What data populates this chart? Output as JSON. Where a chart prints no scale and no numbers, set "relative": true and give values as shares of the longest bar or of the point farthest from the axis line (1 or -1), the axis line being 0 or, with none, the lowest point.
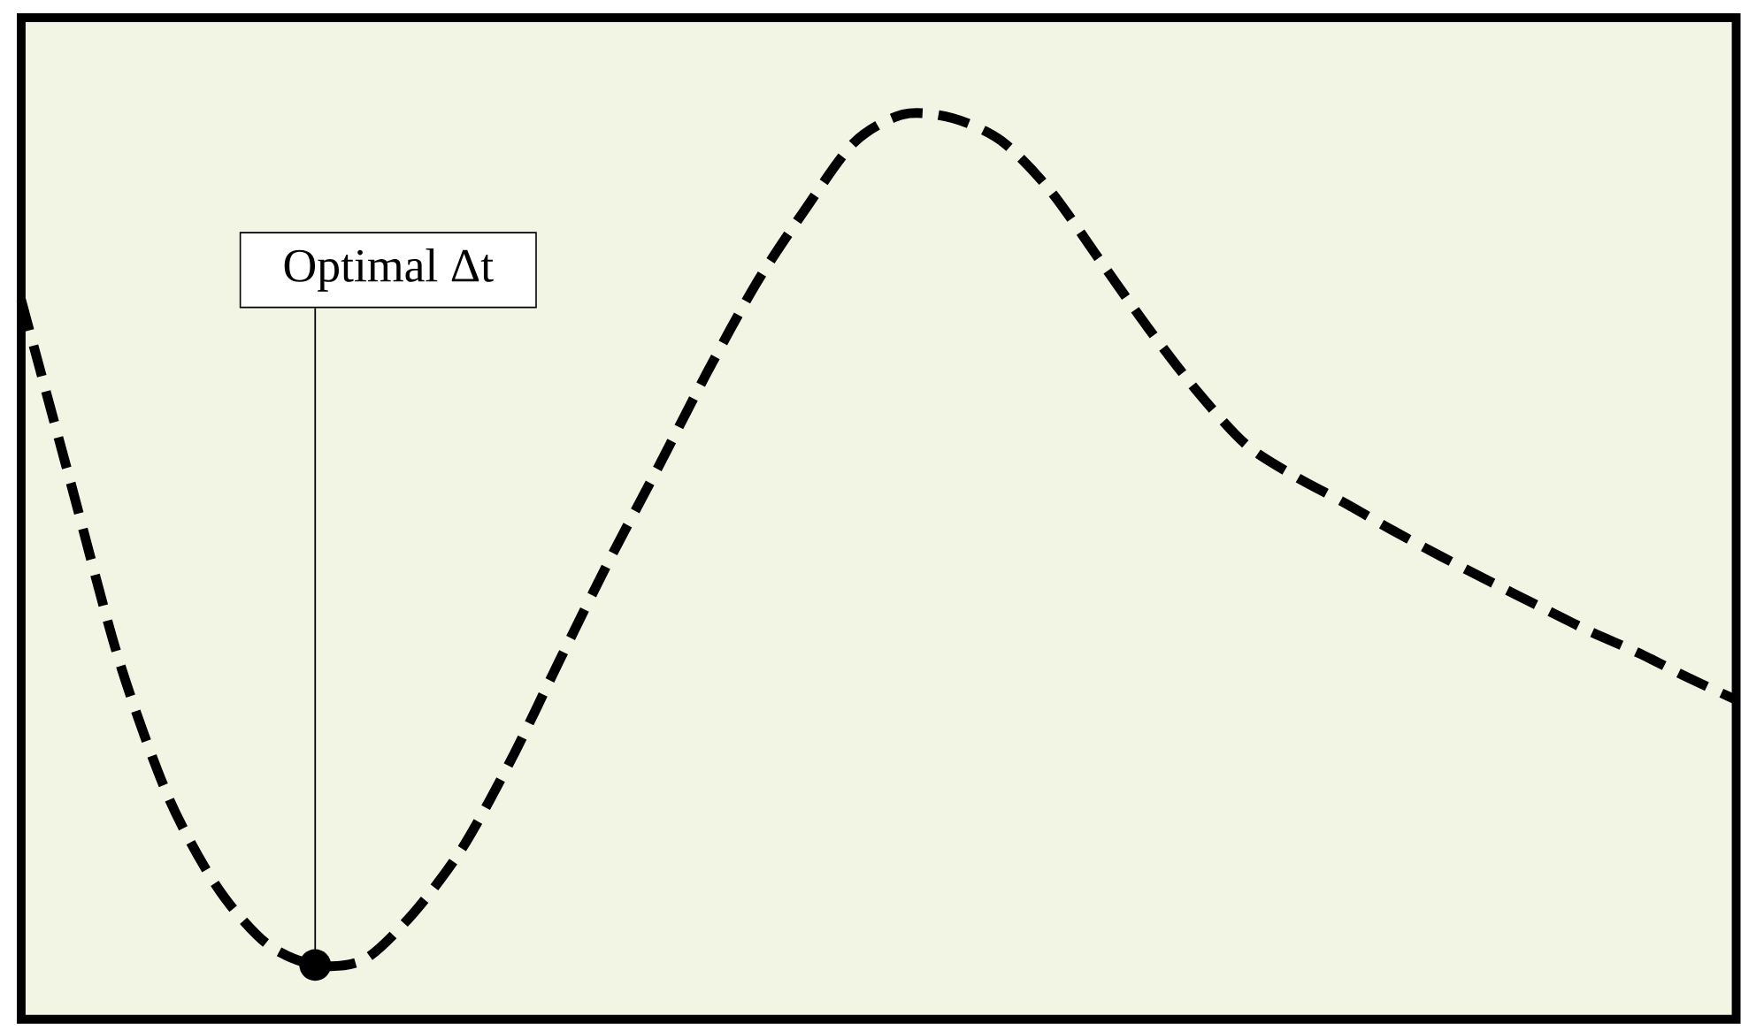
{
  "chart_data": {
    "type": "line",
    "relative": true,
    "tick_labels": false,
    "marker": "none",
    "line_style": "dashed",
    "categories": [
      null,
      null,
      null,
      null,
      null,
      null,
      null,
      null,
      null,
      null,
      null,
      null,
      null,
      null,
      null,
      null,
      null,
      null,
      null,
      null,
      null,
      null,
      null,
      null,
      null,
      null,
      null,
      null,
      null,
      null,
      null,
      null,
      null,
      null,
      null,
      null
    ],
    "series": [
      {
        "color": "#000000",
        "values": [
          0.795,
          0.595,
          0.396,
          0.246,
          0.146,
          0.084,
          0.06,
          0.066,
          0.117,
          0.189,
          0.287,
          0.398,
          0.507,
          0.61,
          0.715,
          0.813,
          0.895,
          0.969,
          1,
          0.996,
          0.971,
          0.916,
          0.84,
          0.764,
          0.694,
          0.635,
          0.6,
          0.571,
          0.54,
          0.511,
          0.483,
          0.456,
          0.429,
          0.405,
          0.378,
          0.353
        ]
      }
    ],
    "annotations": [
      "Optimal Δt"
    ]
  }
}
